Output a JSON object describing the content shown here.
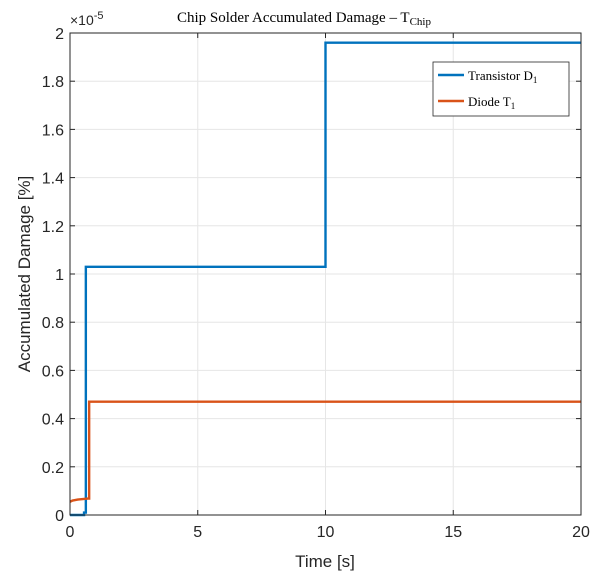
{
  "chart_data": {
    "type": "line",
    "title": "Chip Solder Accumulated Damage – T",
    "title_subscript": "Chip",
    "xlabel": "Time [s]",
    "ylabel": "Accumulated Damage [%]",
    "xlim": [
      0,
      20
    ],
    "ylim": [
      0,
      2
    ],
    "y_multiplier": "×10",
    "y_multiplier_exp": "-5",
    "x_ticks": [
      0,
      5,
      10,
      15,
      20
    ],
    "x_tick_labels": [
      "0",
      "5",
      "10",
      "15",
      "20"
    ],
    "y_ticks": [
      0,
      0.2,
      0.4,
      0.6,
      0.8,
      1,
      1.2,
      1.4,
      1.6,
      1.8,
      2
    ],
    "y_tick_labels": [
      "0",
      "0.2",
      "0.4",
      "0.6",
      "0.8",
      "1",
      "1.2",
      "1.4",
      "1.6",
      "1.8",
      "2"
    ],
    "grid": true,
    "legend_position": "top-right",
    "series": [
      {
        "name": "Transistor D",
        "name_subscript": "1",
        "color": "#0072BD",
        "x": [
          0,
          0.55,
          0.55,
          0.62,
          0.62,
          10,
          10,
          20
        ],
        "y": [
          0,
          0,
          0.01,
          0.01,
          1.03,
          1.03,
          1.96,
          1.96
        ]
      },
      {
        "name": "Diode T",
        "name_subscript": "1",
        "color": "#D95319",
        "x": [
          0,
          0.1,
          0.2,
          0.3,
          0.4,
          0.5,
          0.6,
          0.7,
          0.75,
          0.75,
          20
        ],
        "y": [
          0.055,
          0.06,
          0.062,
          0.064,
          0.065,
          0.066,
          0.067,
          0.068,
          0.068,
          0.47,
          0.47
        ]
      }
    ]
  }
}
